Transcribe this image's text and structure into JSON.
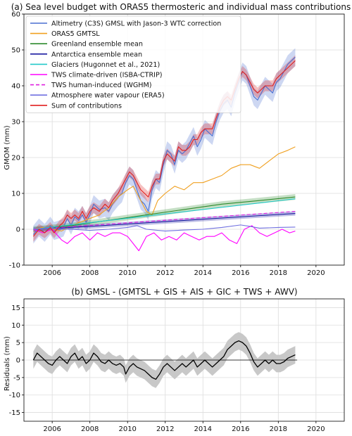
{
  "chart_data": [
    {
      "type": "line",
      "title": "(a) Sea level budget with ORAS5 thermosteric and individual mass contributions",
      "xlabel": "",
      "ylabel": "GMOM (mm)",
      "xlim": [
        2004.5,
        2021.5
      ],
      "ylim": [
        -10,
        60
      ],
      "xticks": [
        2006,
        2008,
        2010,
        2012,
        2014,
        2016,
        2018,
        2020
      ],
      "yticks": [
        -10,
        0,
        10,
        20,
        30,
        40,
        50,
        60
      ],
      "grid": true,
      "legend": "top-left",
      "series": [
        {
          "name": "Altimetry (C3S) GMSL with Jason-3 WTC correction",
          "color": "#4a6fd1",
          "style": "solid",
          "band": 2.5,
          "x": [
            2005.0,
            2005.3,
            2005.6,
            2005.9,
            2006.1,
            2006.4,
            2006.6,
            2006.8,
            2007.0,
            2007.2,
            2007.4,
            2007.6,
            2007.8,
            2008.0,
            2008.2,
            2008.5,
            2008.8,
            2009.0,
            2009.2,
            2009.5,
            2009.7,
            2009.9,
            2010.1,
            2010.3,
            2010.5,
            2010.7,
            2010.9,
            2011.1,
            2011.3,
            2011.5,
            2011.7,
            2011.9,
            2012.1,
            2012.3,
            2012.5,
            2012.7,
            2012.9,
            2013.1,
            2013.3,
            2013.5,
            2013.7,
            2013.9,
            2014.1,
            2014.3,
            2014.5,
            2014.7,
            2014.9,
            2015.1,
            2015.3,
            2015.5,
            2015.7,
            2015.9,
            2016.1,
            2016.3,
            2016.5,
            2016.7,
            2016.9,
            2017.1,
            2017.3,
            2017.5,
            2017.7,
            2017.9,
            2018.1,
            2018.3,
            2018.5,
            2018.7,
            2018.9
          ],
          "y": [
            -1.5,
            0.5,
            -1,
            1,
            -0.5,
            0,
            0.5,
            3,
            1,
            3.5,
            2.5,
            4,
            2,
            4,
            7,
            5.5,
            6,
            5,
            7,
            9,
            10,
            13,
            15,
            14,
            11,
            8,
            7,
            5,
            11,
            14,
            13,
            18,
            22,
            21,
            18,
            22,
            21,
            22,
            24,
            26,
            23,
            25,
            28,
            27,
            26,
            30,
            33,
            35,
            36,
            34,
            38,
            41,
            44,
            43,
            40,
            37,
            36,
            38,
            40,
            39,
            38,
            41,
            42,
            44,
            46,
            47,
            48
          ]
        },
        {
          "name": "ORAS5 GMTSL",
          "color": "#f0a020",
          "style": "solid",
          "band": 0,
          "x": [
            2005.0,
            2005.5,
            2006.0,
            2006.5,
            2007.0,
            2007.5,
            2008.0,
            2008.5,
            2009.0,
            2009.5,
            2010.0,
            2010.3,
            2010.6,
            2011.0,
            2011.3,
            2011.6,
            2012.0,
            2012.5,
            2013.0,
            2013.5,
            2014.0,
            2014.5,
            2015.0,
            2015.5,
            2016.0,
            2016.5,
            2017.0,
            2017.5,
            2018.0,
            2018.5,
            2018.9
          ],
          "y": [
            0,
            0.5,
            0,
            -0.5,
            1,
            2,
            3,
            4,
            6,
            9,
            11,
            12,
            9,
            5,
            4,
            8,
            10,
            12,
            11,
            13,
            13,
            14,
            15,
            17,
            18,
            18,
            17,
            19,
            21,
            22,
            23
          ]
        },
        {
          "name": "Greenland ensemble mean",
          "color": "#2e8b2e",
          "style": "solid",
          "band": 0.8,
          "x": [
            2005.0,
            2007.0,
            2009.0,
            2011.0,
            2013.0,
            2015.0,
            2017.0,
            2018.9
          ],
          "y": [
            0,
            1,
            2.5,
            4,
            5.5,
            7,
            8,
            9
          ]
        },
        {
          "name": "Antarctica ensemble mean",
          "color": "#1a1aa0",
          "style": "solid",
          "band": 0.6,
          "x": [
            2005.0,
            2008.0,
            2011.0,
            2014.0,
            2017.0,
            2018.9
          ],
          "y": [
            0,
            0.8,
            1.8,
            2.8,
            3.8,
            4.4
          ]
        },
        {
          "name": "Glaciers (Hugonnet et al., 2021)",
          "color": "#22c9c9",
          "style": "solid",
          "band": 0,
          "x": [
            2005.0,
            2018.9
          ],
          "y": [
            0,
            8.5
          ]
        },
        {
          "name": "TWS climate-driven (ISBA-CTRIP)",
          "color": "#ff00ff",
          "style": "solid",
          "band": 0,
          "x": [
            2005.0,
            2005.5,
            2006.0,
            2006.5,
            2006.8,
            2007.2,
            2007.6,
            2008.0,
            2008.4,
            2008.8,
            2009.2,
            2009.6,
            2010.0,
            2010.3,
            2010.6,
            2011.0,
            2011.4,
            2011.8,
            2012.2,
            2012.6,
            2013.0,
            2013.4,
            2013.8,
            2014.2,
            2014.6,
            2015.0,
            2015.4,
            2015.8,
            2016.2,
            2016.6,
            2017.0,
            2017.4,
            2017.8,
            2018.2,
            2018.6,
            2018.9
          ],
          "y": [
            0,
            -1,
            0,
            -3,
            -4,
            -2,
            -1,
            -3,
            -1,
            -2,
            -1,
            -1,
            -2,
            -4,
            -6,
            -2,
            -1,
            -3,
            -2,
            -3,
            -1,
            -2,
            -3,
            -2,
            -2,
            -1,
            -3,
            -4,
            0,
            1,
            -1,
            -2,
            -1,
            0,
            -1,
            -0.5
          ]
        },
        {
          "name": "TWS human-induced (WGHM)",
          "color": "#e020e0",
          "style": "dashed",
          "band": 0,
          "x": [
            2005.0,
            2018.9
          ],
          "y": [
            0,
            5
          ]
        },
        {
          "name": "Atmosphere water vapour (ERA5)",
          "color": "#7070e0",
          "style": "solid",
          "band": 0,
          "x": [
            2005.0,
            2006.0,
            2007.0,
            2008.0,
            2009.0,
            2010.0,
            2010.5,
            2011.0,
            2012.0,
            2013.0,
            2014.0,
            2015.0,
            2016.0,
            2016.5,
            2017.0,
            2018.0,
            2018.9
          ],
          "y": [
            0,
            0.3,
            0,
            -0.3,
            0,
            0.5,
            1,
            0,
            -0.5,
            -0.2,
            0,
            0.5,
            1.2,
            0.8,
            0.3,
            0.5,
            0.6
          ]
        },
        {
          "name": "Sum of contributions",
          "color": "#e02020",
          "style": "solid",
          "band": 1.5,
          "x": [
            2005.0,
            2005.3,
            2005.6,
            2005.9,
            2006.1,
            2006.4,
            2006.6,
            2006.8,
            2007.0,
            2007.2,
            2007.4,
            2007.6,
            2007.8,
            2008.0,
            2008.2,
            2008.5,
            2008.8,
            2009.0,
            2009.2,
            2009.5,
            2009.7,
            2009.9,
            2010.1,
            2010.3,
            2010.5,
            2010.7,
            2010.9,
            2011.1,
            2011.3,
            2011.5,
            2011.7,
            2011.9,
            2012.1,
            2012.3,
            2012.5,
            2012.7,
            2012.9,
            2013.1,
            2013.3,
            2013.5,
            2013.7,
            2013.9,
            2014.1,
            2014.3,
            2014.5,
            2014.7,
            2014.9,
            2015.1,
            2015.3,
            2015.5,
            2015.7,
            2015.9,
            2016.1,
            2016.3,
            2016.5,
            2016.7,
            2016.9,
            2017.1,
            2017.3,
            2017.5,
            2017.7,
            2017.9,
            2018.1,
            2018.3,
            2018.5,
            2018.7,
            2018.9
          ],
          "y": [
            -2,
            0,
            -1,
            0.5,
            -1,
            1,
            2,
            4,
            3,
            4,
            3,
            5,
            3,
            5,
            6,
            5,
            7,
            6,
            8,
            10,
            12,
            14,
            16,
            15,
            13,
            11,
            10,
            9,
            12,
            14,
            14,
            19,
            21,
            20,
            19,
            23,
            22,
            22,
            23,
            25,
            25,
            27,
            28,
            28,
            28,
            31,
            34,
            36,
            37,
            36,
            39,
            42,
            44,
            43,
            41,
            39,
            38,
            39,
            40,
            40,
            40,
            42,
            43,
            44,
            45,
            46,
            47
          ]
        }
      ]
    },
    {
      "type": "line",
      "title": "(b) GMSL - (GMTSL + GIS + AIS + GIC + TWS + AWV)",
      "xlabel": "",
      "ylabel": "Residuals (mm)",
      "xlim": [
        2004.5,
        2021.5
      ],
      "ylim": [
        -17.5,
        17.5
      ],
      "xticks": [
        2006,
        2008,
        2010,
        2012,
        2014,
        2016,
        2018,
        2020
      ],
      "yticks": [
        -15,
        -10,
        -5,
        0,
        5,
        10,
        15
      ],
      "grid": true,
      "legend": "none",
      "series": [
        {
          "name": "",
          "color": "#000000",
          "style": "solid",
          "band": 2.5,
          "x": [
            2005.0,
            2005.2,
            2005.4,
            2005.6,
            2005.8,
            2006.0,
            2006.2,
            2006.4,
            2006.6,
            2006.8,
            2007.0,
            2007.2,
            2007.4,
            2007.6,
            2007.8,
            2008.0,
            2008.2,
            2008.4,
            2008.6,
            2008.8,
            2009.0,
            2009.2,
            2009.4,
            2009.6,
            2009.8,
            2009.9,
            2010.1,
            2010.3,
            2010.5,
            2010.7,
            2010.9,
            2011.1,
            2011.3,
            2011.5,
            2011.7,
            2011.9,
            2012.1,
            2012.3,
            2012.5,
            2012.7,
            2012.9,
            2013.1,
            2013.3,
            2013.5,
            2013.7,
            2013.9,
            2014.1,
            2014.3,
            2014.5,
            2014.7,
            2014.9,
            2015.1,
            2015.3,
            2015.5,
            2015.7,
            2015.9,
            2016.1,
            2016.3,
            2016.5,
            2016.7,
            2016.9,
            2017.1,
            2017.3,
            2017.5,
            2017.7,
            2017.9,
            2018.1,
            2018.3,
            2018.5,
            2018.7,
            2018.9
          ],
          "y": [
            0,
            2,
            1,
            0,
            -1,
            -1.5,
            0,
            1,
            0,
            -1,
            1,
            2,
            0,
            1,
            -1,
            0,
            2,
            1,
            -0.5,
            -1,
            0,
            -1,
            -1.5,
            -1,
            -2,
            -4,
            -2,
            -1,
            -2,
            -2.5,
            -3,
            -4,
            -5,
            -5.5,
            -4,
            -2,
            -1,
            -2,
            -3,
            -2,
            -1,
            -2,
            -1,
            0,
            -2,
            -1,
            0,
            -1,
            -2,
            -1,
            0,
            1,
            3,
            4,
            5,
            5.5,
            5,
            4,
            2,
            -0.5,
            -2,
            -1,
            0,
            -1,
            0,
            -1,
            -1,
            -0.5,
            0.5,
            1,
            1.5
          ]
        }
      ]
    }
  ]
}
